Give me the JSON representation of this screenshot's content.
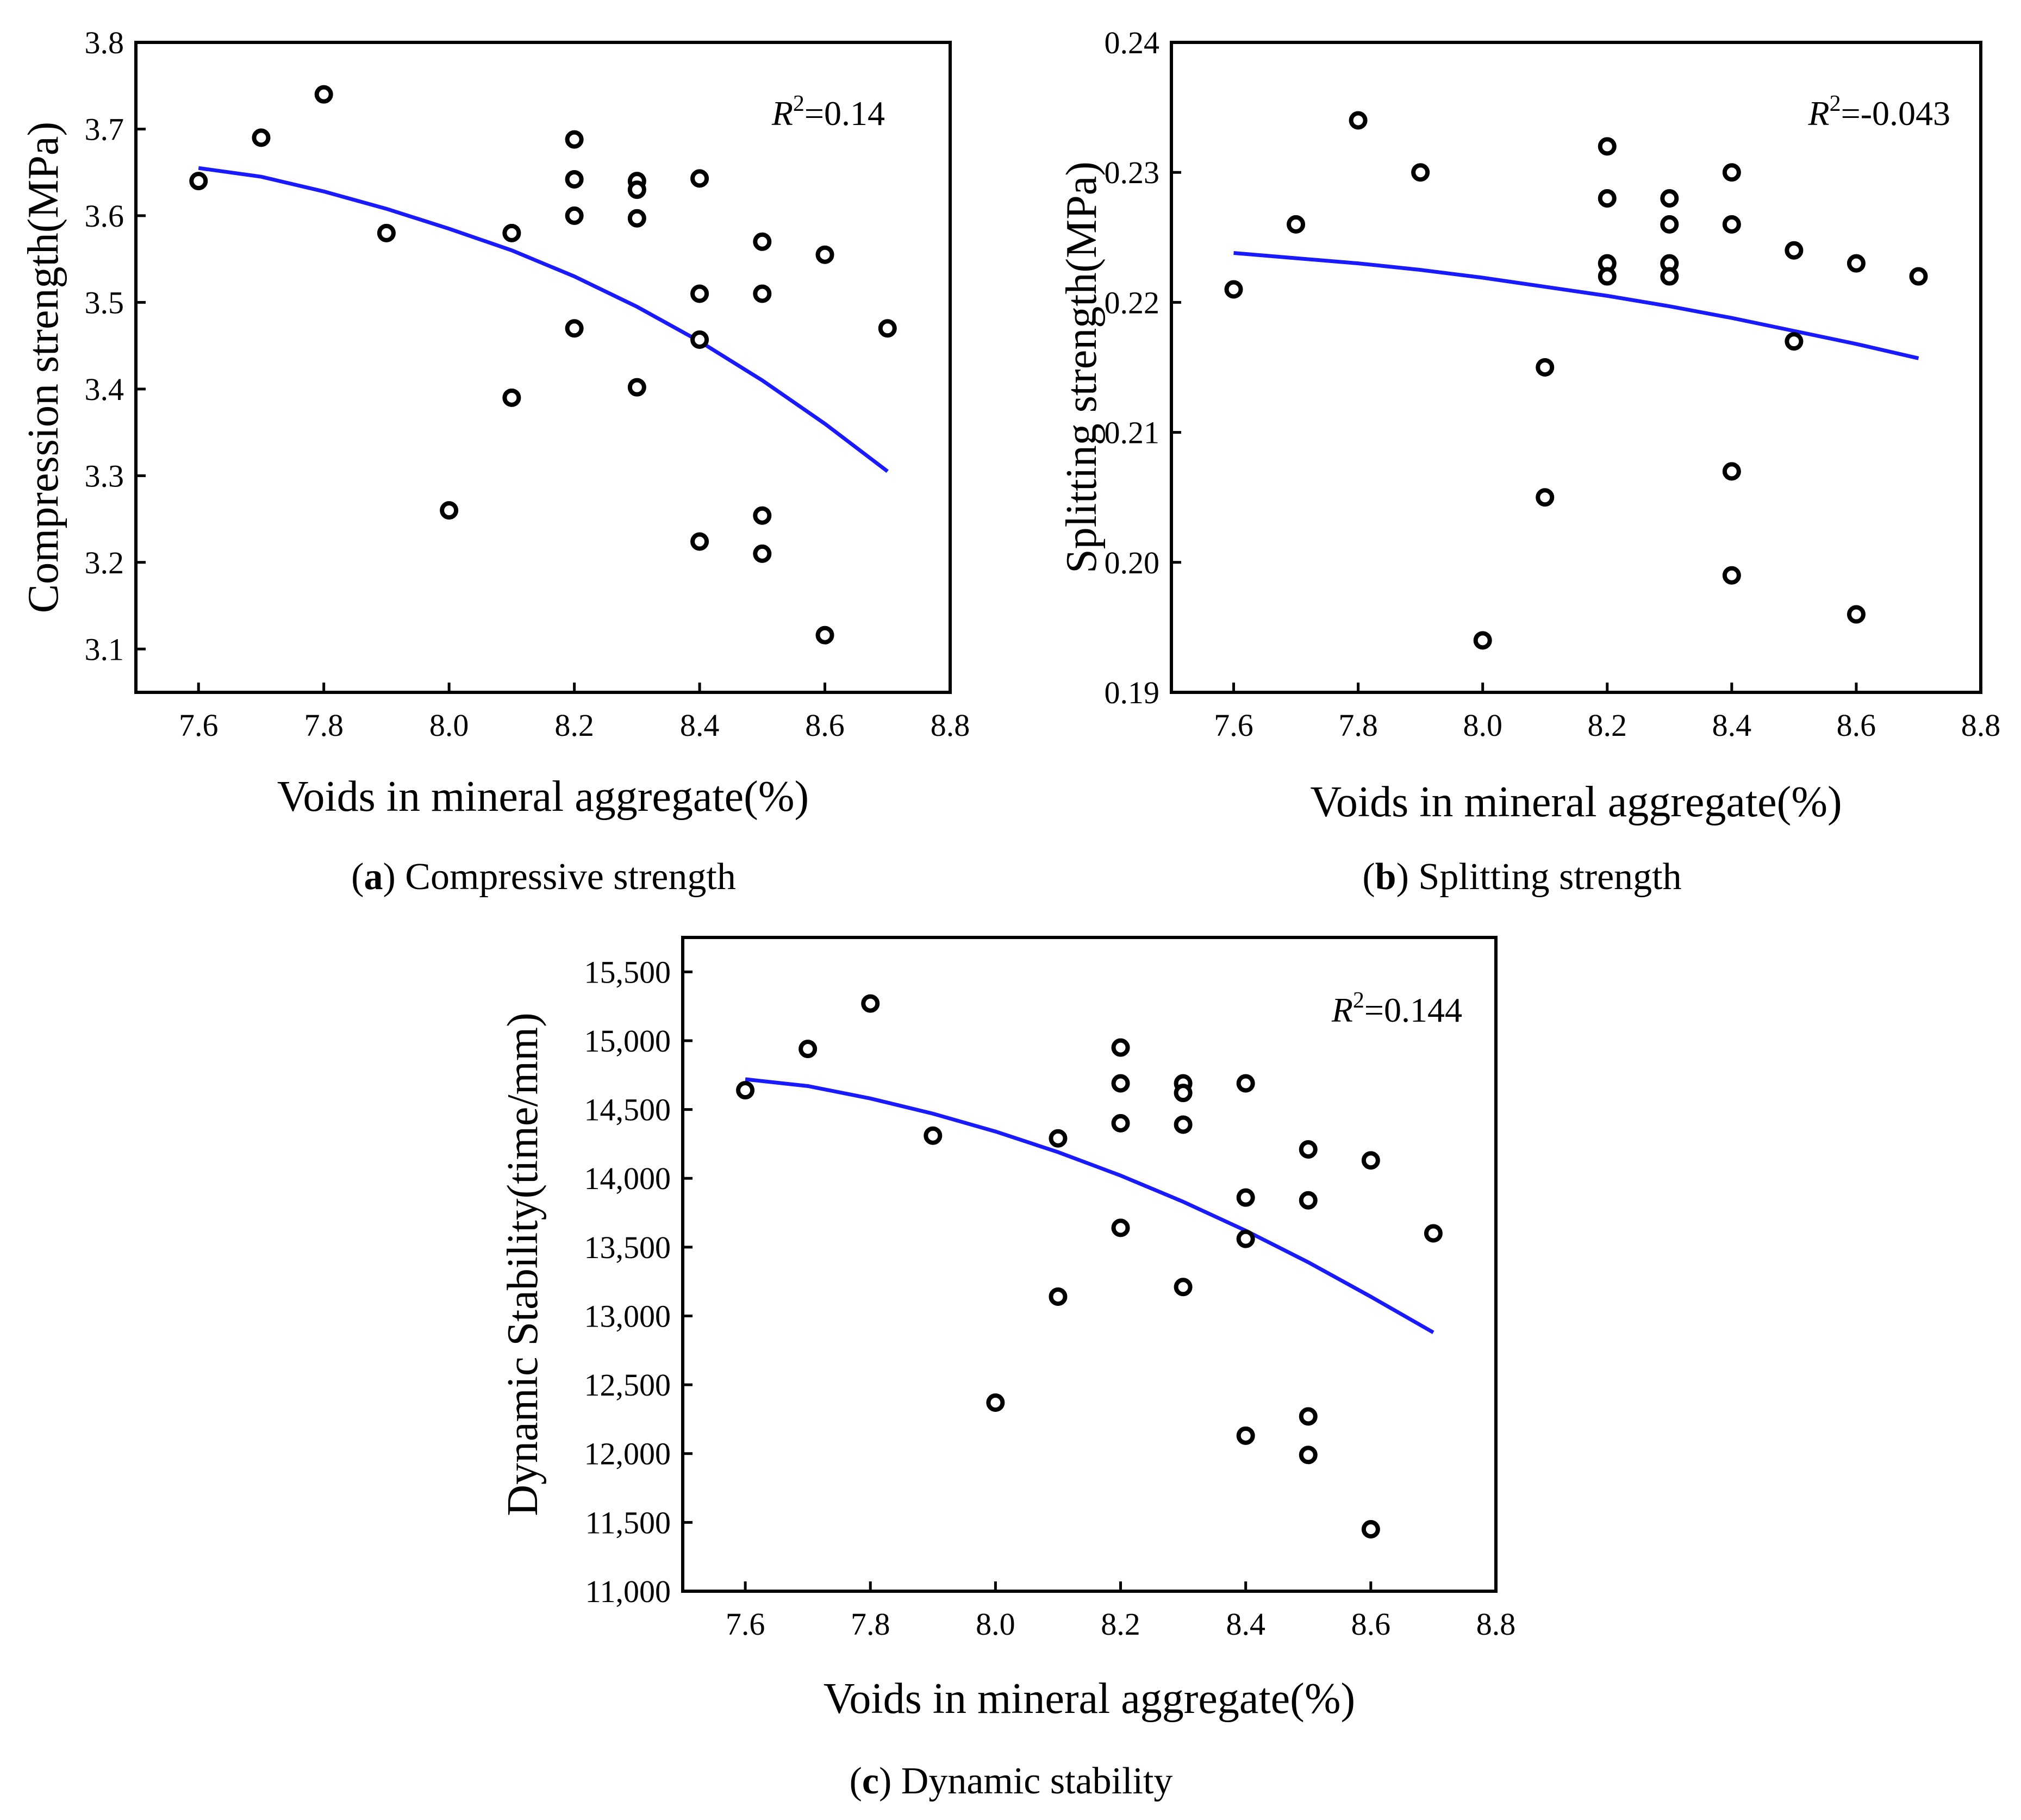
{
  "figure": {
    "chart_data": [
      {
        "type": "scatter",
        "id": "a",
        "caption_letter": "a",
        "caption_text": "Compressive strength",
        "xlabel": "Voids in mineral aggregate(%)",
        "ylabel": "Compression strength(MPa)",
        "xlim": [
          7.5,
          8.8
        ],
        "ylim": [
          3.05,
          3.8
        ],
        "xticks": [
          "7.6",
          "7.8",
          "8.0",
          "8.2",
          "8.4",
          "8.6",
          "8.8"
        ],
        "xtick_values": [
          7.6,
          7.8,
          8.0,
          8.2,
          8.4,
          8.6,
          8.8
        ],
        "yticks": [
          "3.1",
          "3.2",
          "3.3",
          "3.4",
          "3.5",
          "3.6",
          "3.7",
          "3.8"
        ],
        "ytick_values": [
          3.1,
          3.2,
          3.3,
          3.4,
          3.5,
          3.6,
          3.7,
          3.8
        ],
        "r2_symbol": "R",
        "r2_exp": "2",
        "r2_value": "=0.14",
        "points": [
          [
            7.6,
            3.64
          ],
          [
            7.7,
            3.69
          ],
          [
            7.8,
            3.74
          ],
          [
            7.9,
            3.58
          ],
          [
            8.0,
            3.26
          ],
          [
            8.1,
            3.58
          ],
          [
            8.1,
            3.39
          ],
          [
            8.2,
            3.688
          ],
          [
            8.2,
            3.642
          ],
          [
            8.2,
            3.6
          ],
          [
            8.2,
            3.47
          ],
          [
            8.3,
            3.64
          ],
          [
            8.3,
            3.63
          ],
          [
            8.3,
            3.597
          ],
          [
            8.3,
            3.402
          ],
          [
            8.4,
            3.643
          ],
          [
            8.4,
            3.51
          ],
          [
            8.4,
            3.457
          ],
          [
            8.4,
            3.224
          ],
          [
            8.5,
            3.57
          ],
          [
            8.5,
            3.51
          ],
          [
            8.5,
            3.254
          ],
          [
            8.5,
            3.21
          ],
          [
            8.6,
            3.555
          ],
          [
            8.6,
            3.116
          ],
          [
            8.7,
            3.47
          ]
        ],
        "fit": {
          "color": "#1a1aff",
          "x": [
            7.6,
            7.7,
            7.8,
            7.9,
            8.0,
            8.1,
            8.2,
            8.3,
            8.4,
            8.5,
            8.6,
            8.7
          ],
          "y": [
            3.655,
            3.645,
            3.628,
            3.608,
            3.585,
            3.56,
            3.53,
            3.495,
            3.455,
            3.41,
            3.36,
            3.305
          ]
        }
      },
      {
        "type": "scatter",
        "id": "b",
        "caption_letter": "b",
        "caption_text": "Splitting strength",
        "xlabel": "Voids in mineral aggregate(%)",
        "ylabel": "Splitting strength(MPa)",
        "xlim": [
          7.5,
          8.8
        ],
        "ylim": [
          0.19,
          0.24
        ],
        "xticks": [
          "7.6",
          "7.8",
          "8.0",
          "8.2",
          "8.4",
          "8.6",
          "8.8"
        ],
        "xtick_values": [
          7.6,
          7.8,
          8.0,
          8.2,
          8.4,
          8.6,
          8.8
        ],
        "yticks": [
          "0.19",
          "0.20",
          "0.21",
          "0.22",
          "0.23",
          "0.24"
        ],
        "ytick_values": [
          0.19,
          0.2,
          0.21,
          0.22,
          0.23,
          0.24
        ],
        "r2_symbol": "R",
        "r2_exp": "2",
        "r2_value": "=-0.043",
        "points": [
          [
            7.6,
            0.221
          ],
          [
            7.7,
            0.226
          ],
          [
            7.8,
            0.234
          ],
          [
            7.9,
            0.23
          ],
          [
            8.0,
            0.194
          ],
          [
            8.1,
            0.215
          ],
          [
            8.1,
            0.205
          ],
          [
            8.2,
            0.232
          ],
          [
            8.2,
            0.228
          ],
          [
            8.2,
            0.223
          ],
          [
            8.2,
            0.222
          ],
          [
            8.3,
            0.228
          ],
          [
            8.3,
            0.226
          ],
          [
            8.3,
            0.223
          ],
          [
            8.3,
            0.222
          ],
          [
            8.4,
            0.23
          ],
          [
            8.4,
            0.226
          ],
          [
            8.4,
            0.207
          ],
          [
            8.4,
            0.199
          ],
          [
            8.5,
            0.224
          ],
          [
            8.5,
            0.217
          ],
          [
            8.6,
            0.223
          ],
          [
            8.6,
            0.196
          ],
          [
            8.7,
            0.222
          ]
        ],
        "fit": {
          "color": "#1a1aff",
          "x": [
            7.6,
            7.7,
            7.8,
            7.9,
            8.0,
            8.1,
            8.2,
            8.3,
            8.4,
            8.5,
            8.6,
            8.7
          ],
          "y": [
            0.2238,
            0.2234,
            0.223,
            0.2225,
            0.2219,
            0.2212,
            0.2205,
            0.2197,
            0.2188,
            0.2178,
            0.2168,
            0.2157
          ]
        }
      },
      {
        "type": "scatter",
        "id": "c",
        "caption_letter": "c",
        "caption_text": "Dynamic stability",
        "xlabel": "Voids in mineral aggregate(%)",
        "ylabel": "Dynamic Stability(time/mm)",
        "xlim": [
          7.5,
          8.8
        ],
        "ylim": [
          11000,
          15750
        ],
        "xticks": [
          "7.6",
          "7.8",
          "8.0",
          "8.2",
          "8.4",
          "8.6",
          "8.8"
        ],
        "xtick_values": [
          7.6,
          7.8,
          8.0,
          8.2,
          8.4,
          8.6,
          8.8
        ],
        "yticks": [
          "11,000",
          "11,500",
          "12,000",
          "12,500",
          "13,000",
          "13,500",
          "14,000",
          "14,500",
          "15,000",
          "15,500"
        ],
        "ytick_values": [
          11000,
          11500,
          12000,
          12500,
          13000,
          13500,
          14000,
          14500,
          15000,
          15500
        ],
        "r2_symbol": "R",
        "r2_exp": "2",
        "r2_value": "=0.144",
        "points": [
          [
            7.6,
            14640
          ],
          [
            7.7,
            14940
          ],
          [
            7.8,
            15270
          ],
          [
            7.9,
            14310
          ],
          [
            8.0,
            12370
          ],
          [
            8.1,
            14290
          ],
          [
            8.1,
            13140
          ],
          [
            8.2,
            14950
          ],
          [
            8.2,
            14690
          ],
          [
            8.2,
            14400
          ],
          [
            8.2,
            13640
          ],
          [
            8.3,
            14690
          ],
          [
            8.3,
            14620
          ],
          [
            8.3,
            14390
          ],
          [
            8.3,
            13210
          ],
          [
            8.4,
            14690
          ],
          [
            8.4,
            13860
          ],
          [
            8.4,
            13560
          ],
          [
            8.4,
            12130
          ],
          [
            8.5,
            14210
          ],
          [
            8.5,
            13840
          ],
          [
            8.5,
            12270
          ],
          [
            8.5,
            11990
          ],
          [
            8.6,
            14130
          ],
          [
            8.6,
            11450
          ],
          [
            8.7,
            13600
          ]
        ],
        "fit": {
          "color": "#1a1aff",
          "x": [
            7.6,
            7.7,
            7.8,
            7.9,
            8.0,
            8.1,
            8.2,
            8.3,
            8.4,
            8.5,
            8.6,
            8.7
          ],
          "y": [
            14720,
            14670,
            14580,
            14470,
            14340,
            14190,
            14020,
            13830,
            13620,
            13390,
            13140,
            12880
          ]
        }
      }
    ]
  }
}
